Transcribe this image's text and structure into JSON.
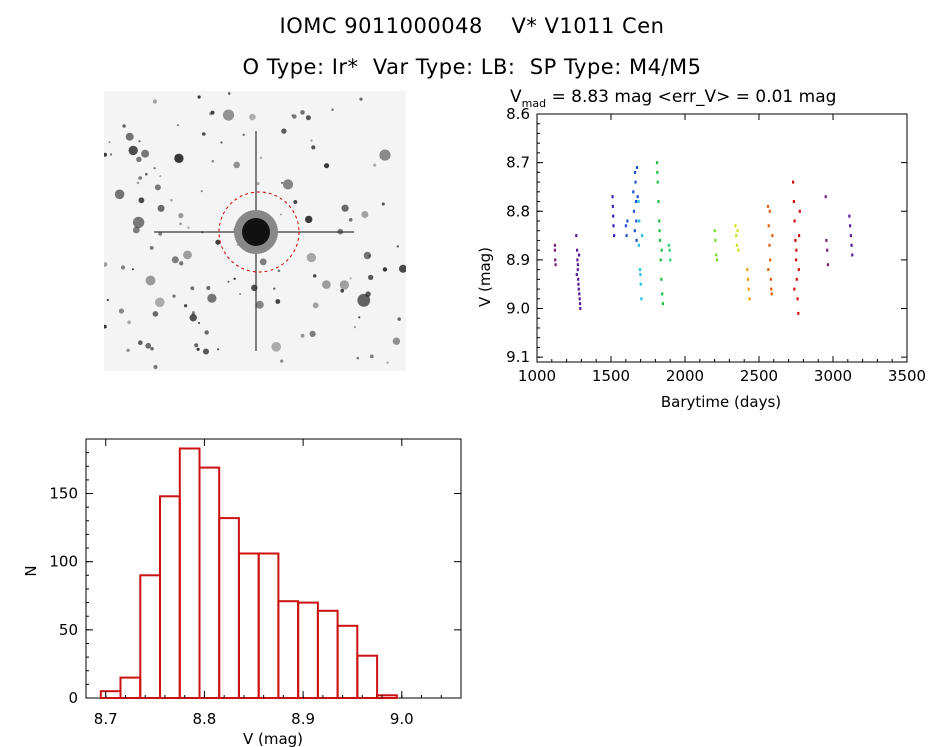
{
  "header": {
    "title": "IOMC 9011000048    V* V1011 Cen",
    "subtitle": "O Type: Ir*  Var Type: LB:  SP Type: M4/M5"
  },
  "colors": {
    "hist_bar": "#cc1111",
    "aperture": "#cc0000",
    "stars": "#2a2a2a",
    "series": [
      "#7a1f7a",
      "#5a1a9a",
      "#3020c0",
      "#2050d0",
      "#20c0e0",
      "#20c040",
      "#30d070",
      "#70e020",
      "#d0e020",
      "#f0a000",
      "#e06010",
      "#d01010"
    ]
  },
  "light_curve": {
    "title_main": "V",
    "title_sub": "mad",
    "title_rest": " = 8.83 mag <err_V> = 0.01 mag",
    "xlabel": "Barytime (days)",
    "ylabel": "V (mag)",
    "xticks": [
      "1000",
      "1500",
      "2000",
      "2500",
      "3000",
      "3500"
    ],
    "yticks": [
      "8.6",
      "8.7",
      "8.8",
      "8.9",
      "9.0",
      "9.1"
    ]
  },
  "histogram": {
    "xlabel": "V (mag)",
    "ylabel": "N",
    "xticks": [
      "8.7",
      "8.8",
      "8.9",
      "9.0"
    ],
    "yticks": [
      "0",
      "50",
      "100",
      "150"
    ]
  },
  "chart_data": [
    {
      "type": "scatter",
      "xlim": [
        1000,
        3500
      ],
      "ylim": [
        9.11,
        8.6
      ],
      "y_inverted": true,
      "series": [
        {
          "x": [
            1120,
            1120,
            1122,
            1125
          ],
          "y": [
            8.87,
            8.88,
            8.9,
            8.91
          ]
        },
        {
          "x": [
            1265,
            1270,
            1272,
            1275,
            1278,
            1280,
            1282,
            1285,
            1288,
            1290,
            1292,
            1268,
            1276,
            1284
          ],
          "y": [
            8.85,
            8.88,
            8.9,
            8.92,
            8.94,
            8.95,
            8.96,
            8.97,
            8.98,
            8.99,
            9.0,
            8.93,
            8.91,
            8.89
          ]
        },
        {
          "x": [
            1510,
            1512,
            1514,
            1516,
            1520
          ],
          "y": [
            8.77,
            8.79,
            8.81,
            8.83,
            8.85
          ]
        },
        {
          "x": [
            1600,
            1605,
            1610,
            1650,
            1655,
            1660,
            1662,
            1665,
            1668,
            1670,
            1672,
            1675,
            1680
          ],
          "y": [
            8.83,
            8.85,
            8.82,
            8.76,
            8.8,
            8.84,
            8.72,
            8.74,
            8.78,
            8.82,
            8.86,
            8.71,
            8.77
          ]
        },
        {
          "x": [
            1685,
            1690,
            1695,
            1700,
            1705,
            1710,
            1688,
            1698
          ],
          "y": [
            8.78,
            8.82,
            8.92,
            8.95,
            8.98,
            8.85,
            8.87,
            8.93
          ]
        },
        {
          "x": [
            1810,
            1815,
            1820,
            1825,
            1830,
            1835,
            1840,
            1845,
            1850,
            1812,
            1828,
            1842
          ],
          "y": [
            8.7,
            8.74,
            8.78,
            8.82,
            8.86,
            8.9,
            8.94,
            8.97,
            8.99,
            8.72,
            8.84,
            8.88
          ]
        },
        {
          "x": [
            1890,
            1895,
            1900
          ],
          "y": [
            8.87,
            8.88,
            8.9
          ]
        },
        {
          "x": [
            2200,
            2205,
            2210,
            2215
          ],
          "y": [
            8.84,
            8.86,
            8.89,
            8.9
          ]
        },
        {
          "x": [
            2340,
            2345,
            2350,
            2355,
            2360
          ],
          "y": [
            8.83,
            8.85,
            8.87,
            8.84,
            8.88
          ]
        },
        {
          "x": [
            2420,
            2425,
            2430,
            2435
          ],
          "y": [
            8.92,
            8.94,
            8.96,
            8.98
          ]
        },
        {
          "x": [
            2560,
            2565,
            2570,
            2575,
            2580,
            2585,
            2590,
            2562,
            2572,
            2582
          ],
          "y": [
            8.79,
            8.83,
            8.87,
            8.9,
            8.94,
            8.97,
            8.85,
            8.92,
            8.8,
            8.96
          ]
        },
        {
          "x": [
            2730,
            2735,
            2740,
            2745,
            2750,
            2755,
            2760,
            2765,
            2770,
            2775,
            2738,
            2752,
            2768
          ],
          "y": [
            8.74,
            8.78,
            8.82,
            8.86,
            8.9,
            8.94,
            8.98,
            9.01,
            8.85,
            8.8,
            8.96,
            8.88,
            8.92
          ]
        },
        {
          "x": [
            2950,
            2955,
            2960,
            2965
          ],
          "y": [
            8.77,
            8.86,
            8.88,
            8.91
          ]
        },
        {
          "x": [
            3110,
            3115,
            3120,
            3125,
            3130
          ],
          "y": [
            8.81,
            8.83,
            8.85,
            8.87,
            8.89
          ]
        }
      ]
    },
    {
      "type": "bar",
      "xlim": [
        8.68,
        9.06
      ],
      "ylim": [
        0,
        190
      ],
      "bin_edges": [
        8.695,
        8.715,
        8.735,
        8.755,
        8.775,
        8.795,
        8.815,
        8.835,
        8.855,
        8.875,
        8.895,
        8.915,
        8.935,
        8.955,
        8.975,
        8.995,
        9.015,
        9.035
      ],
      "values": [
        5,
        15,
        90,
        148,
        183,
        169,
        132,
        106,
        106,
        71,
        70,
        64,
        53,
        31,
        2,
        0,
        0
      ]
    }
  ]
}
